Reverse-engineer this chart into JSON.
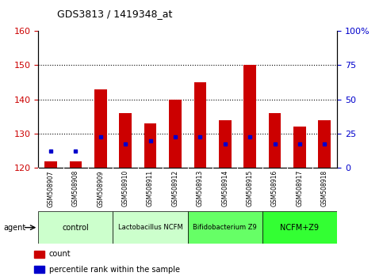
{
  "title": "GDS3813 / 1419348_at",
  "samples": [
    "GSM508907",
    "GSM508908",
    "GSM508909",
    "GSM508910",
    "GSM508911",
    "GSM508912",
    "GSM508913",
    "GSM508914",
    "GSM508915",
    "GSM508916",
    "GSM508917",
    "GSM508918"
  ],
  "bar_heights": [
    122,
    122,
    143,
    136,
    133,
    140,
    145,
    134,
    150,
    136,
    132,
    134
  ],
  "bar_base": 120,
  "blue_dot_values": [
    125,
    125,
    129,
    127,
    128,
    129,
    129,
    127,
    129,
    127,
    127,
    127
  ],
  "ylim_left": [
    120,
    160
  ],
  "yticks_left": [
    120,
    130,
    140,
    150,
    160
  ],
  "yticks_right": [
    0,
    25,
    50,
    75,
    100
  ],
  "ytick_labels_right": [
    "0",
    "25",
    "50",
    "75",
    "100%"
  ],
  "bar_color": "#cc0000",
  "dot_color": "#0000cc",
  "plot_bg_color": "#ffffff",
  "left_tick_color": "#cc0000",
  "right_tick_color": "#0000cc",
  "gridline_color": "#000000",
  "gridline_ticks": [
    130,
    140,
    150
  ],
  "legend_items": [
    {
      "label": "count",
      "color": "#cc0000"
    },
    {
      "label": "percentile rank within the sample",
      "color": "#0000cc"
    }
  ],
  "agent_label": "agent",
  "group_colors": [
    "#ccffcc",
    "#ccffcc",
    "#66ff66",
    "#33ff33"
  ],
  "group_labels": [
    "control",
    "Lactobacillus NCFM",
    "Bifidobacterium Z9",
    "NCFM+Z9"
  ],
  "group_starts": [
    0,
    3,
    6,
    9
  ],
  "group_ends": [
    3,
    6,
    9,
    12
  ],
  "xticklabel_bg": "#d3d3d3",
  "xticklabel_fontsize": 6,
  "bar_width": 0.5
}
